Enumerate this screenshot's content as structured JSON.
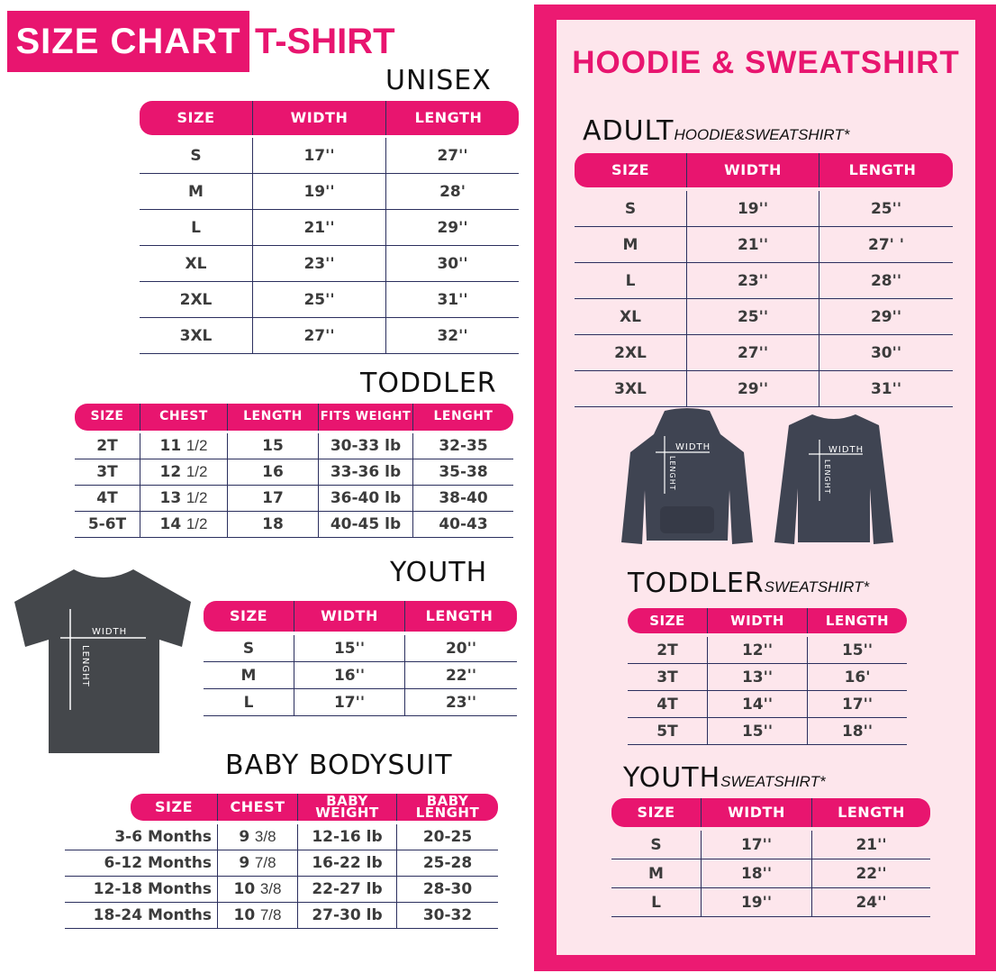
{
  "header": {
    "title": "SIZE CHART",
    "subtitle": "T-SHIRT"
  },
  "colors": {
    "accent": "#e8156f",
    "panel_bg": "#fde6ec",
    "line": "#2b2f5e",
    "garment": "#3f4348"
  },
  "image_labels": {
    "width": "WIDTH",
    "length": "LENGHT"
  },
  "tshirt": {
    "unisex": {
      "title": "UNISEX",
      "columns": [
        "SIZE",
        "WIDTH",
        "LENGTH"
      ],
      "rows": [
        [
          "S",
          "17''",
          "27''"
        ],
        [
          "M",
          "19''",
          "28'"
        ],
        [
          "L",
          "21''",
          "29''"
        ],
        [
          "XL",
          "23''",
          "30''"
        ],
        [
          "2XL",
          "25''",
          "31''"
        ],
        [
          "3XL",
          "27''",
          "32''"
        ]
      ]
    },
    "toddler": {
      "title": "TODDLER",
      "columns": [
        "SIZE",
        "CHEST",
        "LENGTH",
        "FITS WEIGHT",
        "LENGHT"
      ],
      "rows": [
        [
          "2T",
          "11|1/2",
          "15",
          "30-33 lb",
          "32-35"
        ],
        [
          "3T",
          "12|1/2",
          "16",
          "33-36 lb",
          "35-38"
        ],
        [
          "4T",
          "13|1/2",
          "17",
          "36-40 lb",
          "38-40"
        ],
        [
          "5-6T",
          "14|1/2",
          "18",
          "40-45 lb",
          "40-43"
        ]
      ]
    },
    "youth": {
      "title": "YOUTH",
      "columns": [
        "SIZE",
        "WIDTH",
        "LENGTH"
      ],
      "rows": [
        [
          "S",
          "15''",
          "20''"
        ],
        [
          "M",
          "16''",
          "22''"
        ],
        [
          "L",
          "17''",
          "23''"
        ]
      ]
    },
    "baby": {
      "title": "BABY BODYSUIT",
      "columns": [
        "SIZE",
        "CHEST",
        "BABY WEIGHT",
        "BABY LENGHT"
      ],
      "rows": [
        [
          "3-6 Months",
          "9|3/8",
          "12-16 lb",
          "20-25"
        ],
        [
          "6-12 Months",
          "9|7/8",
          "16-22 lb",
          "25-28"
        ],
        [
          "12-18 Months",
          "10|3/8",
          "22-27 lb",
          "28-30"
        ],
        [
          "18-24 Months",
          "10|7/8",
          "27-30 lb",
          "30-32"
        ]
      ]
    }
  },
  "hoodie": {
    "title": "HOODIE & SWEATSHIRT",
    "adult": {
      "title": "ADULT",
      "subtitle": "HOODIE&SWEATSHIRT*",
      "columns": [
        "SIZE",
        "WIDTH",
        "LENGTH"
      ],
      "rows": [
        [
          "S",
          "19''",
          "25''"
        ],
        [
          "M",
          "21''",
          "27' '"
        ],
        [
          "L",
          "23''",
          "28''"
        ],
        [
          "XL",
          "25''",
          "29''"
        ],
        [
          "2XL",
          "27''",
          "30''"
        ],
        [
          "3XL",
          "29''",
          "31''"
        ]
      ]
    },
    "toddler": {
      "title": "TODDLER",
      "subtitle": "SWEATSHIRT*",
      "columns": [
        "SIZE",
        "WIDTH",
        "LENGTH"
      ],
      "rows": [
        [
          "2T",
          "12''",
          "15''"
        ],
        [
          "3T",
          "13''",
          "16'"
        ],
        [
          "4T",
          "14''",
          "17''"
        ],
        [
          "5T",
          "15''",
          "18''"
        ]
      ]
    },
    "youth": {
      "title": "YOUTH",
      "subtitle": "SWEATSHIRT*",
      "columns": [
        "SIZE",
        "WIDTH",
        "LENGTH"
      ],
      "rows": [
        [
          "S",
          "17''",
          "21''"
        ],
        [
          "M",
          "18''",
          "22''"
        ],
        [
          "L",
          "19''",
          "24''"
        ]
      ]
    }
  }
}
